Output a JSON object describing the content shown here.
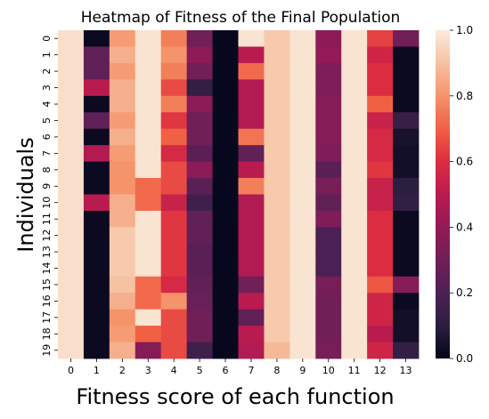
{
  "chart_data": {
    "type": "heatmap",
    "title": "Heatmap of Fitness of the Final Population",
    "xlabel": "Fitness score of each function",
    "ylabel": "Individuals",
    "x": [
      "0",
      "1",
      "2",
      "3",
      "4",
      "5",
      "6",
      "7",
      "8",
      "9",
      "10",
      "11",
      "12",
      "13"
    ],
    "y": [
      "0",
      "1",
      "2",
      "3",
      "4",
      "5",
      "6",
      "7",
      "8",
      "9",
      "10",
      "11",
      "12",
      "13",
      "14",
      "15",
      "16",
      "17",
      "18",
      "19"
    ],
    "vmin": 0,
    "vmax": 1,
    "colorbar_ticks": [
      "0.0",
      "0.2",
      "0.4",
      "0.6",
      "0.8",
      "1.0"
    ],
    "colormap": "rocket",
    "values": [
      [
        0.97,
        0.02,
        0.82,
        0.98,
        0.76,
        0.3,
        0.01,
        0.98,
        0.92,
        0.98,
        0.38,
        0.98,
        0.64,
        0.3
      ],
      [
        0.97,
        0.25,
        0.86,
        0.98,
        0.8,
        0.38,
        0.01,
        0.5,
        0.92,
        0.98,
        0.4,
        0.98,
        0.56,
        0.02
      ],
      [
        0.97,
        0.25,
        0.82,
        0.98,
        0.76,
        0.3,
        0.01,
        0.72,
        0.92,
        0.98,
        0.34,
        0.98,
        0.6,
        0.02
      ],
      [
        0.97,
        0.5,
        0.86,
        0.98,
        0.66,
        0.12,
        0.01,
        0.48,
        0.92,
        0.98,
        0.34,
        0.98,
        0.6,
        0.02
      ],
      [
        0.97,
        0.02,
        0.86,
        0.98,
        0.76,
        0.38,
        0.01,
        0.48,
        0.92,
        0.98,
        0.36,
        0.98,
        0.7,
        0.02
      ],
      [
        0.97,
        0.25,
        0.82,
        0.98,
        0.62,
        0.3,
        0.01,
        0.48,
        0.92,
        0.98,
        0.36,
        0.98,
        0.54,
        0.14
      ],
      [
        0.97,
        0.02,
        0.86,
        0.98,
        0.7,
        0.3,
        0.01,
        0.74,
        0.92,
        0.98,
        0.36,
        0.98,
        0.58,
        0.05
      ],
      [
        0.97,
        0.48,
        0.82,
        0.98,
        0.58,
        0.24,
        0.01,
        0.26,
        0.92,
        0.98,
        0.34,
        0.98,
        0.58,
        0.04
      ],
      [
        0.97,
        0.02,
        0.8,
        0.98,
        0.66,
        0.38,
        0.01,
        0.5,
        0.92,
        0.98,
        0.24,
        0.98,
        0.62,
        0.04
      ],
      [
        0.97,
        0.02,
        0.8,
        0.72,
        0.66,
        0.24,
        0.01,
        0.76,
        0.92,
        0.98,
        0.32,
        0.98,
        0.54,
        0.1
      ],
      [
        0.97,
        0.5,
        0.86,
        0.72,
        0.54,
        0.16,
        0.01,
        0.48,
        0.92,
        0.98,
        0.26,
        0.98,
        0.54,
        0.12
      ],
      [
        0.97,
        0.02,
        0.86,
        0.98,
        0.62,
        0.26,
        0.01,
        0.48,
        0.92,
        0.98,
        0.34,
        0.98,
        0.6,
        0.02
      ],
      [
        0.97,
        0.02,
        0.92,
        0.98,
        0.62,
        0.26,
        0.01,
        0.48,
        0.92,
        0.98,
        0.2,
        0.98,
        0.6,
        0.02
      ],
      [
        0.97,
        0.02,
        0.92,
        0.98,
        0.62,
        0.24,
        0.01,
        0.48,
        0.92,
        0.98,
        0.2,
        0.98,
        0.6,
        0.02
      ],
      [
        0.97,
        0.02,
        0.92,
        0.98,
        0.62,
        0.24,
        0.01,
        0.48,
        0.92,
        0.98,
        0.2,
        0.98,
        0.6,
        0.02
      ],
      [
        0.97,
        0.02,
        0.9,
        0.72,
        0.58,
        0.26,
        0.01,
        0.3,
        0.92,
        0.98,
        0.32,
        0.98,
        0.68,
        0.36
      ],
      [
        0.97,
        0.02,
        0.86,
        0.72,
        0.8,
        0.28,
        0.01,
        0.5,
        0.92,
        0.98,
        0.3,
        0.98,
        0.56,
        0.02
      ],
      [
        0.97,
        0.02,
        0.8,
        0.98,
        0.66,
        0.3,
        0.01,
        0.26,
        0.92,
        0.98,
        0.3,
        0.98,
        0.56,
        0.04
      ],
      [
        0.97,
        0.02,
        0.82,
        0.7,
        0.66,
        0.3,
        0.01,
        0.5,
        0.92,
        0.98,
        0.3,
        0.98,
        0.5,
        0.04
      ],
      [
        0.97,
        0.02,
        0.86,
        0.36,
        0.66,
        0.16,
        0.01,
        0.48,
        0.88,
        0.98,
        0.32,
        0.98,
        0.56,
        0.12
      ]
    ]
  }
}
